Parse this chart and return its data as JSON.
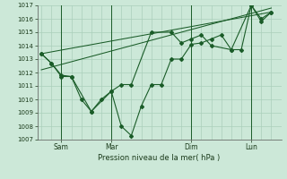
{
  "xlabel": "Pression niveau de la mer( hPa )",
  "ylim": [
    1007,
    1017
  ],
  "yticks": [
    1007,
    1008,
    1009,
    1010,
    1011,
    1012,
    1013,
    1014,
    1015,
    1016,
    1017
  ],
  "xtick_labels": [
    "Sam",
    "Mar",
    "Dim",
    "Lun"
  ],
  "bg_color": "#cce8d8",
  "grid_color": "#aacfbb",
  "line_color": "#1a5c28",
  "series1_x": [
    0.0,
    0.5,
    1.0,
    1.5,
    2.0,
    2.5,
    3.0,
    3.5,
    4.0,
    4.5,
    5.0,
    5.5,
    6.0,
    6.5,
    7.0,
    7.5,
    8.0,
    8.5,
    9.0,
    9.5,
    10.0,
    10.5,
    11.0,
    11.5
  ],
  "series1_y": [
    1013.4,
    1012.7,
    1011.8,
    1011.7,
    1010.0,
    1009.1,
    1010.0,
    1010.6,
    1008.0,
    1007.3,
    1009.5,
    1011.1,
    1011.1,
    1013.0,
    1013.0,
    1014.1,
    1014.2,
    1014.5,
    1014.8,
    1013.7,
    1013.7,
    1017.0,
    1016.0,
    1016.5
  ],
  "series2_x": [
    0.0,
    0.5,
    1.0,
    1.5,
    2.5,
    3.5,
    4.0,
    4.5,
    5.5,
    6.5,
    7.0,
    7.5,
    8.0,
    8.5,
    9.5,
    10.5,
    11.0,
    11.5
  ],
  "series2_y": [
    1013.4,
    1012.7,
    1011.7,
    1011.7,
    1009.1,
    1010.6,
    1011.1,
    1011.1,
    1015.0,
    1015.0,
    1014.2,
    1014.5,
    1014.8,
    1014.0,
    1013.7,
    1017.0,
    1015.8,
    1016.5
  ],
  "trend1_x": [
    0.0,
    11.5
  ],
  "trend1_y": [
    1013.4,
    1016.5
  ],
  "trend2_x": [
    0.0,
    11.5
  ],
  "trend2_y": [
    1012.2,
    1016.8
  ],
  "vline_positions": [
    1.0,
    3.5,
    7.5,
    10.5
  ],
  "xtick_positions": [
    1.0,
    3.5,
    7.5,
    10.5
  ],
  "xlim": [
    -0.2,
    12.0
  ]
}
